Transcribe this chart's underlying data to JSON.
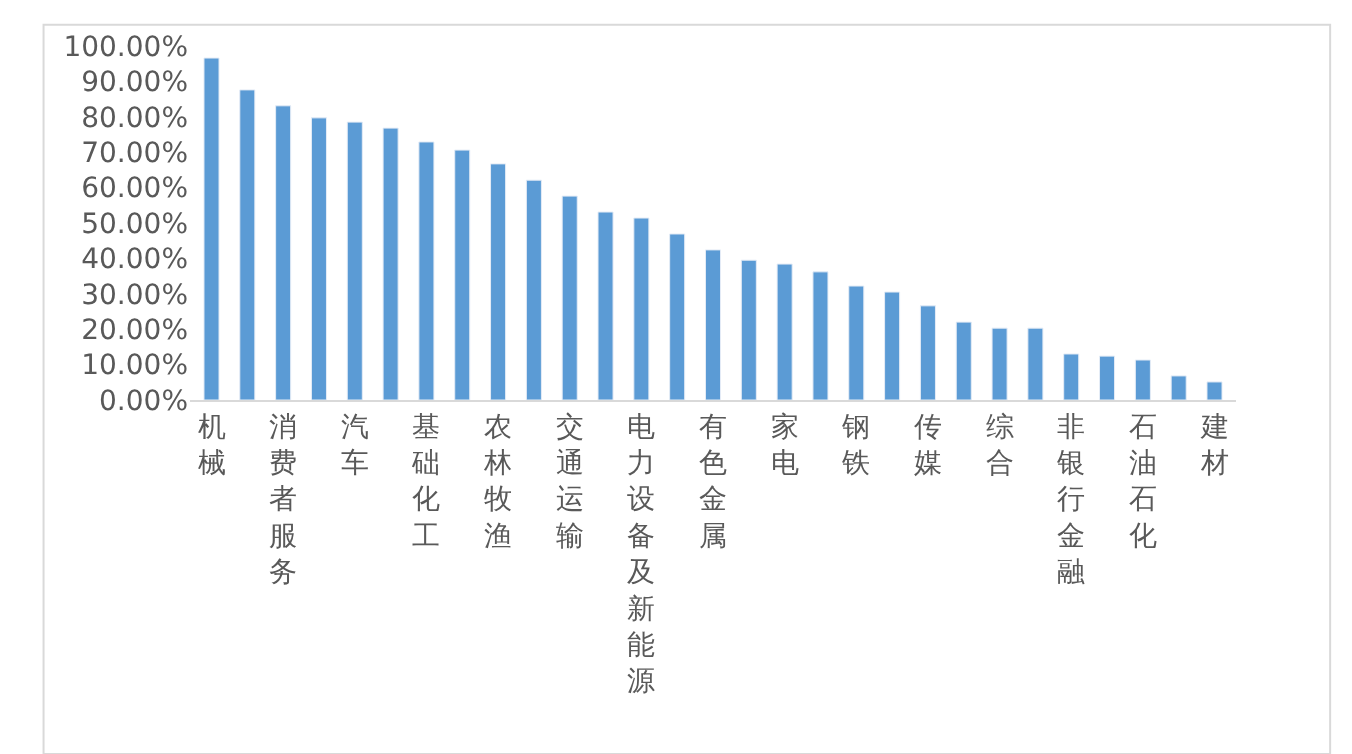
{
  "chart_data": {
    "type": "bar",
    "categories": [
      "机械",
      null,
      "消费者服务",
      null,
      "汽车",
      null,
      "基础化工",
      null,
      "农林牧渔",
      null,
      "交通运输",
      null,
      "电力设备及新能源",
      null,
      "有色金属",
      null,
      "家电",
      null,
      "钢铁",
      null,
      "传媒",
      null,
      "综合",
      null,
      "非银行金融",
      null,
      "石油石化",
      null,
      "建材"
    ],
    "values": [
      96.6,
      87.6,
      83.1,
      79.7,
      78.5,
      76.8,
      72.9,
      70.6,
      66.7,
      62.1,
      57.6,
      53.1,
      51.4,
      46.9,
      42.4,
      39.5,
      38.4,
      36.2,
      32.2,
      30.5,
      26.6,
      22.0,
      20.3,
      20.3,
      13.0,
      12.4,
      11.3,
      6.8,
      5.1
    ],
    "color": "#5b9bd5",
    "ylim": [
      0,
      100
    ],
    "yticks": [
      {
        "value": 0,
        "label": "0.00%"
      },
      {
        "value": 10,
        "label": "10.00%"
      },
      {
        "value": 20,
        "label": "20.00%"
      },
      {
        "value": 30,
        "label": "30.00%"
      },
      {
        "value": 40,
        "label": "40.00%"
      },
      {
        "value": 50,
        "label": "50.00%"
      },
      {
        "value": 60,
        "label": "60.00%"
      },
      {
        "value": 70,
        "label": "70.00%"
      },
      {
        "value": 80,
        "label": "80.00%"
      },
      {
        "value": 90,
        "label": "90.00%"
      },
      {
        "value": 100,
        "label": "100.00%"
      }
    ]
  }
}
